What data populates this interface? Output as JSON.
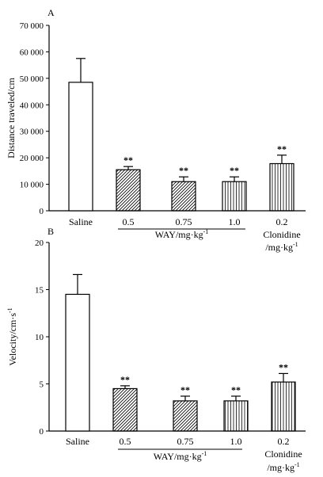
{
  "chart_data": [
    {
      "type": "bar",
      "panel_label": "A",
      "ylabel": "Distance traveled/cm",
      "ylim": [
        0,
        70000
      ],
      "yticks": [
        0,
        10000,
        20000,
        30000,
        40000,
        50000,
        60000,
        70000
      ],
      "ytick_labels": [
        "0",
        "10 000",
        "20 000",
        "30 000",
        "40 000",
        "50 000",
        "60 000",
        "70 000"
      ],
      "categories": [
        "Saline",
        "0.5",
        "0.75",
        "1.0",
        "0.2"
      ],
      "values": [
        48500,
        15500,
        11000,
        11000,
        17800
      ],
      "errors": [
        9000,
        1200,
        1800,
        1800,
        3200
      ],
      "significance": [
        "",
        "**",
        "**",
        "**",
        "**"
      ],
      "patterns": [
        "none",
        "diag",
        "diag",
        "vert",
        "vert"
      ],
      "group_labels": [
        {
          "text": "WAY/mg·kg",
          "sup": "-1"
        },
        {
          "text": "Clonidine",
          "line2": "/mg·kg",
          "sup": "-1"
        }
      ]
    },
    {
      "type": "bar",
      "panel_label": "B",
      "ylabel": "Velocity/cm·s",
      "ylabel_sup": "-1",
      "ylim": [
        0,
        20
      ],
      "yticks": [
        0,
        5,
        10,
        15,
        20
      ],
      "ytick_labels": [
        "0",
        "5",
        "10",
        "15",
        "20"
      ],
      "categories": [
        "Saline",
        "0.5",
        "0.75",
        "1.0",
        "0.2"
      ],
      "values": [
        14.5,
        4.5,
        3.2,
        3.2,
        5.2
      ],
      "errors": [
        2.1,
        0.3,
        0.5,
        0.5,
        0.9
      ],
      "significance": [
        "",
        "**",
        "**",
        "**",
        "**"
      ],
      "patterns": [
        "none",
        "diag",
        "diag",
        "vert",
        "vert"
      ],
      "group_labels": [
        {
          "text": "WAY/mg·kg",
          "sup": "-1"
        },
        {
          "text": "Clonidine",
          "line2": "/mg·kg",
          "sup": "-1"
        }
      ]
    }
  ]
}
